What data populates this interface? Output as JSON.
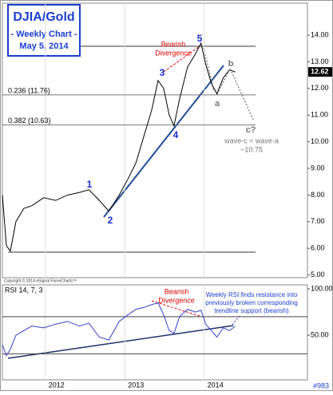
{
  "chart_data": [
    {
      "type": "line",
      "title": "DJIA/Gold",
      "subtitle": "- Weekly Chart -",
      "date": "May 5, 2014",
      "credit": "Copyright © 2014 eSignal ForexCharts™",
      "x": [
        2011.46,
        2011.51,
        2011.56,
        2011.63,
        2011.73,
        2011.83,
        2011.98,
        2012.13,
        2012.28,
        2012.43,
        2012.55,
        2012.68,
        2012.8,
        2012.93,
        2013.04,
        2013.14,
        2013.24,
        2013.34,
        2013.42,
        2013.49,
        2013.56,
        2013.62,
        2013.69,
        2013.79,
        2013.89,
        2013.96,
        2014.02,
        2014.09,
        2014.16,
        2014.24,
        2014.32,
        2014.39
      ],
      "values": [
        8.0,
        6.1,
        5.9,
        7.0,
        7.5,
        7.6,
        7.9,
        7.8,
        8.0,
        8.1,
        8.2,
        7.8,
        7.4,
        8.0,
        8.6,
        9.2,
        10.2,
        11.2,
        12.3,
        12.0,
        11.0,
        10.6,
        11.6,
        12.8,
        13.3,
        13.7,
        12.9,
        12.2,
        11.8,
        12.4,
        12.7,
        12.62
      ],
      "color": "#000000",
      "xlim": [
        2011.46,
        2015.3
      ],
      "ylim": [
        4.9,
        15.2
      ],
      "yticks": [
        {
          "value": 5,
          "label": "5.00"
        },
        {
          "value": 6,
          "label": "6.00"
        },
        {
          "value": 7,
          "label": "7.00"
        },
        {
          "value": 8,
          "label": "8.00"
        },
        {
          "value": 9,
          "label": "9.00"
        },
        {
          "value": 10,
          "label": "10.00"
        },
        {
          "value": 11,
          "label": "11.00"
        },
        {
          "value": 12,
          "label": "12.00"
        },
        {
          "value": 13,
          "label": "13.00"
        },
        {
          "value": 14,
          "label": "14.00"
        }
      ],
      "levels": [
        {
          "value": 11.76,
          "label": "0.236 (11.76)"
        },
        {
          "value": 10.63,
          "label": "0.382 (10.63)"
        }
      ],
      "wave_labels": [
        "1",
        "2",
        "3",
        "4",
        "5",
        "a",
        "b",
        "c?"
      ],
      "divergence": [
        "Bearish",
        "Divergence"
      ],
      "target": [
        "wave-c = wave-a",
        "~10.75"
      ]
    },
    {
      "type": "line",
      "title": "RSI 14, 7, 3",
      "id_label": "#983",
      "values": [
        40,
        28,
        35,
        50,
        55,
        60,
        58,
        62,
        65,
        60,
        63,
        48,
        45,
        65,
        72,
        78,
        80,
        83,
        85,
        72,
        55,
        52,
        70,
        78,
        75,
        77,
        62,
        55,
        48,
        58,
        55,
        60
      ],
      "color": "#3344cc",
      "ylim": [
        2,
        104.3
      ],
      "yticks": [
        {
          "value": 50,
          "label": "50.00"
        },
        {
          "value": 100,
          "label": "100.00"
        }
      ],
      "xticks": [
        2012,
        2013,
        2014
      ],
      "ref_lines": [
        70,
        30
      ],
      "divergence": [
        "Bearish",
        "Divergence"
      ],
      "note": [
        "Weekly RSI finds resistance into",
        "previously broken corresponding",
        "trendline support (bearish)"
      ]
    }
  ]
}
